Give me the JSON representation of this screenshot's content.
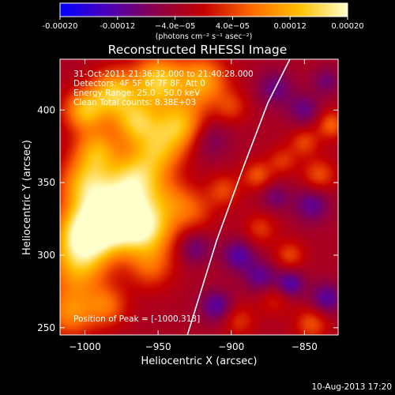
{
  "chart_data": {
    "type": "heatmap",
    "title": "Reconstructed RHESSI Image",
    "xlabel": "Heliocentric X (arcsec)",
    "ylabel": "Heliocentric Y (arcsec)",
    "xlim": [
      -1017,
      -827
    ],
    "ylim": [
      245,
      435
    ],
    "x_ticks": [
      -1000,
      -950,
      -900,
      -850
    ],
    "x_tick_labels": [
      "−1000",
      "−950",
      "−900",
      "−850"
    ],
    "y_ticks": [
      250,
      300,
      350,
      400
    ],
    "y_tick_labels": [
      "250",
      "300",
      "350",
      "400"
    ],
    "colorbar": {
      "min": -0.0002,
      "max": 0.0002,
      "ticks": [
        -0.0002,
        -0.00012,
        -4e-05,
        4e-05,
        0.00012,
        0.0002
      ],
      "tick_labels": [
        "-0.00020",
        "-0.00012",
        "−4.0e−05",
        "4.0e−05",
        "0.00012",
        "0.00020"
      ],
      "unit_label": "(photons cm⁻² s⁻¹ asec⁻²)",
      "palette": [
        "#0000ff",
        "#4b00b8",
        "#8a0047",
        "#c40000",
        "#ff6a00",
        "#ffc000",
        "#ffffcc"
      ]
    },
    "annotations": [
      "31-Oct-2011 21:36:32.000 to 21:40:28.000",
      "Detectors: 4F 5F 6F 7F 8F, Att 0",
      "Energy Range: 25.0 - 50.0 keV",
      "Clean     Total counts: 8.38E+03",
      "Position of Peak = [-1000,313]"
    ],
    "limb_line": [
      [
        -930,
        245
      ],
      [
        -910,
        310
      ],
      [
        -892,
        360
      ],
      [
        -875,
        405
      ],
      [
        -860,
        435
      ]
    ],
    "blobs": [
      {
        "x": -1000,
        "y": 313,
        "sigma": 14,
        "value": 0.0002
      },
      {
        "x": -985,
        "y": 330,
        "sigma": 16,
        "value": 0.00017
      },
      {
        "x": -970,
        "y": 322,
        "sigma": 14,
        "value": 0.00014
      },
      {
        "x": -955,
        "y": 318,
        "sigma": 13,
        "value": 0.00012
      },
      {
        "x": -1005,
        "y": 290,
        "sigma": 14,
        "value": 0.00011
      },
      {
        "x": -965,
        "y": 352,
        "sigma": 13,
        "value": 0.00016
      },
      {
        "x": -1000,
        "y": 350,
        "sigma": 12,
        "value": 0.00012
      },
      {
        "x": -992,
        "y": 372,
        "sigma": 11,
        "value": 0.00013
      },
      {
        "x": -950,
        "y": 372,
        "sigma": 12,
        "value": 0.00012
      },
      {
        "x": -965,
        "y": 392,
        "sigma": 11,
        "value": 0.00015
      },
      {
        "x": -935,
        "y": 390,
        "sigma": 12,
        "value": 0.00015
      },
      {
        "x": -1000,
        "y": 400,
        "sigma": 10,
        "value": 0.00015
      },
      {
        "x": -980,
        "y": 412,
        "sigma": 11,
        "value": 0.00016
      },
      {
        "x": -950,
        "y": 420,
        "sigma": 12,
        "value": 0.00017
      },
      {
        "x": -920,
        "y": 420,
        "sigma": 12,
        "value": 0.00014
      },
      {
        "x": -1010,
        "y": 260,
        "sigma": 12,
        "value": 0.00011
      },
      {
        "x": -985,
        "y": 265,
        "sigma": 10,
        "value": 9e-05
      },
      {
        "x": -955,
        "y": 292,
        "sigma": 11,
        "value": 8e-05
      },
      {
        "x": -940,
        "y": 338,
        "sigma": 11,
        "value": 7e-05
      },
      {
        "x": -925,
        "y": 330,
        "sigma": 10,
        "value": 6e-05
      },
      {
        "x": -905,
        "y": 345,
        "sigma": 8,
        "value": 7e-05
      },
      {
        "x": -882,
        "y": 355,
        "sigma": 7,
        "value": 8e-05
      },
      {
        "x": -865,
        "y": 365,
        "sigma": 7,
        "value": 6e-05
      },
      {
        "x": -850,
        "y": 378,
        "sigma": 7,
        "value": 7e-05
      },
      {
        "x": -900,
        "y": 402,
        "sigma": 8,
        "value": 6e-05
      },
      {
        "x": -880,
        "y": 318,
        "sigma": 8,
        "value": 6e-05
      },
      {
        "x": -860,
        "y": 300,
        "sigma": 7,
        "value": 7e-05
      },
      {
        "x": -840,
        "y": 355,
        "sigma": 8,
        "value": 8e-05
      },
      {
        "x": -832,
        "y": 390,
        "sigma": 7,
        "value": 9e-05
      },
      {
        "x": -845,
        "y": 253,
        "sigma": 8,
        "value": 8e-05
      },
      {
        "x": -895,
        "y": 255,
        "sigma": 8,
        "value": 6e-05
      },
      {
        "x": -870,
        "y": 270,
        "sigma": 8,
        "value": 5e-05
      },
      {
        "x": -915,
        "y": 380,
        "sigma": 10,
        "value": -6e-05
      },
      {
        "x": -870,
        "y": 415,
        "sigma": 9,
        "value": -7e-05
      },
      {
        "x": -845,
        "y": 335,
        "sigma": 9,
        "value": -8e-05
      },
      {
        "x": -895,
        "y": 300,
        "sigma": 8,
        "value": -9e-05
      },
      {
        "x": -880,
        "y": 285,
        "sigma": 8,
        "value": -8e-05
      },
      {
        "x": -860,
        "y": 280,
        "sigma": 7,
        "value": -0.0001
      },
      {
        "x": -910,
        "y": 265,
        "sigma": 8,
        "value": -9e-05
      },
      {
        "x": -835,
        "y": 270,
        "sigma": 8,
        "value": -9e-05
      },
      {
        "x": -850,
        "y": 400,
        "sigma": 8,
        "value": -7e-05
      },
      {
        "x": -925,
        "y": 305,
        "sigma": 8,
        "value": -7e-05
      },
      {
        "x": -835,
        "y": 420,
        "sigma": 7,
        "value": -6e-05
      },
      {
        "x": -870,
        "y": 340,
        "sigma": 7,
        "value": -6e-05
      }
    ]
  },
  "timestamp": "10-Aug-2013 17:20"
}
